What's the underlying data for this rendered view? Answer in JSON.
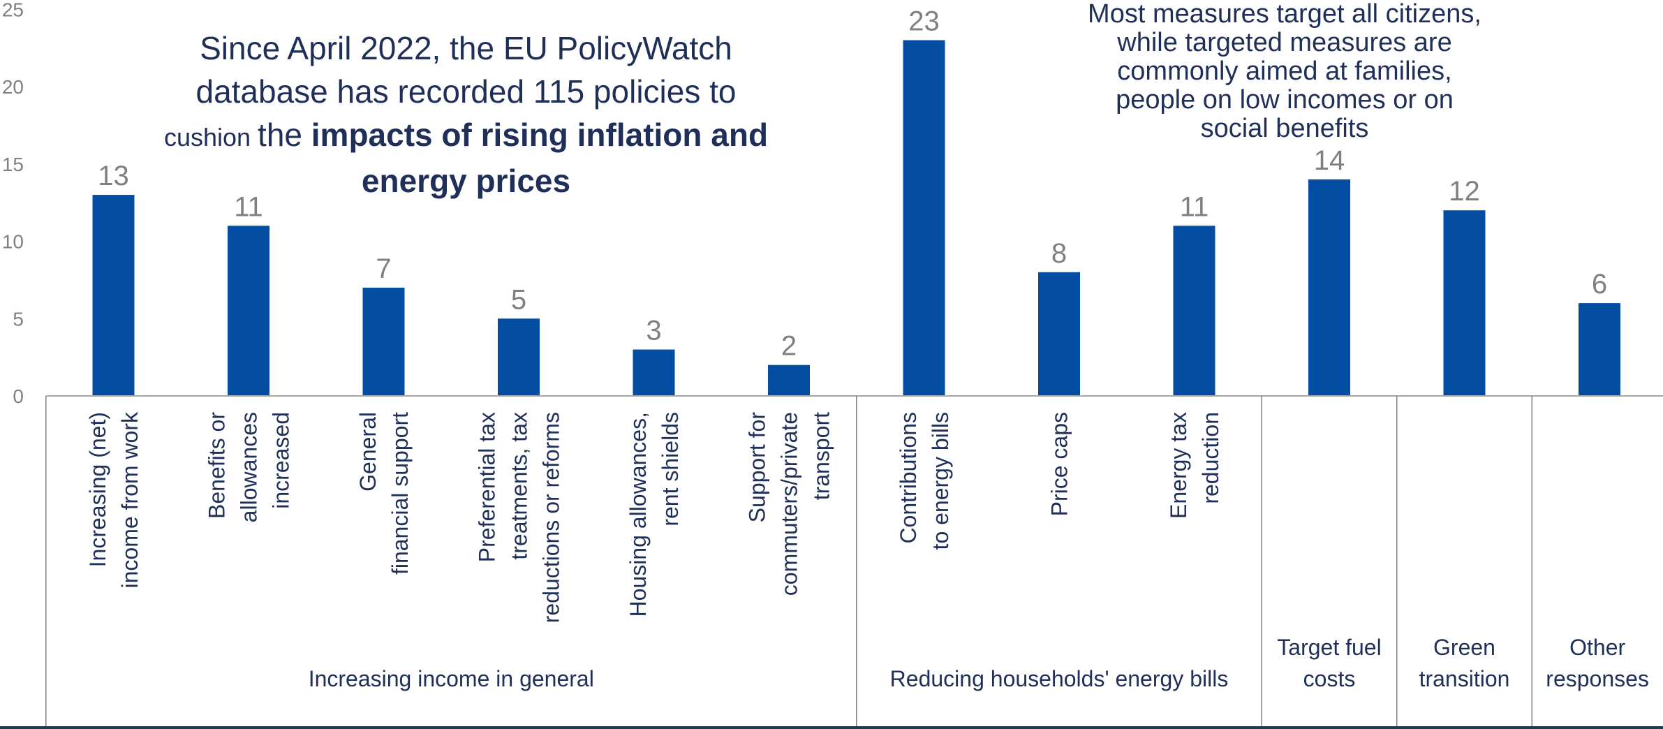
{
  "colors": {
    "bar": "#034ea2",
    "value_label": "#808080",
    "axis_tick": "#808080",
    "axis_line": "#a6a6a6",
    "divider": "#808080",
    "category_text": "#1f2f57",
    "annotation_text": "#1f2f57",
    "bottom_border": "#1f3a4d"
  },
  "annotations": {
    "left": {
      "line1": "Since April 2022, the EU PolicyWatch",
      "line2": "database has recorded 115 policies to",
      "line3_small": "cushion ",
      "line3_normal": "the ",
      "line3_bold": "impacts of rising inflation and",
      "line4_bold": "energy prices"
    },
    "right": {
      "line1": "Most measures target all citizens,",
      "line2": "while targeted measures are",
      "line3": "commonly aimed at families,",
      "line4": "people on low incomes or on",
      "line5": "social benefits"
    }
  },
  "chart_data": {
    "type": "bar",
    "title": "",
    "xlabel": "",
    "ylabel": "",
    "ylim": [
      0,
      25
    ],
    "yticks": [
      0,
      5,
      10,
      15,
      20,
      25
    ],
    "grid": false,
    "legend": "none",
    "categories": [
      [
        "Increasing (net)",
        "income from work"
      ],
      [
        "Benefits or",
        "allowances",
        "increased"
      ],
      [
        "General",
        "financial support"
      ],
      [
        "Preferential tax",
        "treatments, tax",
        "reductions or reforms"
      ],
      [
        "Housing allowances,",
        "rent shields"
      ],
      [
        "Support for",
        "commuters/private",
        "transport"
      ],
      [
        "Contributions",
        "to energy bills"
      ],
      [
        "Price caps"
      ],
      [
        "Energy tax",
        "reduction"
      ],
      [],
      [],
      []
    ],
    "values": [
      13,
      11,
      7,
      5,
      3,
      2,
      23,
      8,
      11,
      14,
      12,
      6
    ],
    "groups": [
      {
        "label": [
          "Increasing income in general"
        ],
        "start": 0,
        "end": 5
      },
      {
        "label": [
          "Reducing households' energy bills"
        ],
        "start": 6,
        "end": 8
      },
      {
        "label": [
          "Target fuel",
          "costs"
        ],
        "start": 9,
        "end": 9
      },
      {
        "label": [
          "Green",
          "transition"
        ],
        "start": 10,
        "end": 10
      },
      {
        "label": [
          "Other",
          "responses"
        ],
        "start": 11,
        "end": 11
      }
    ]
  }
}
